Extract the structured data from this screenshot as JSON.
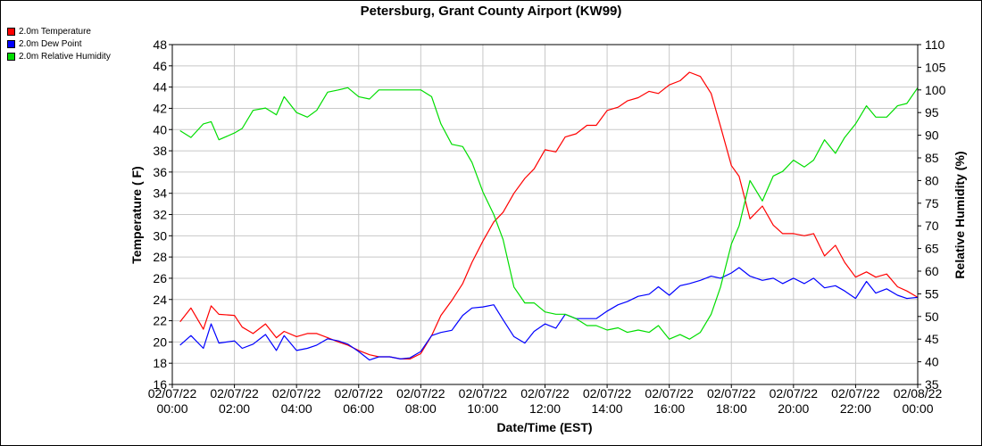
{
  "chart_data": {
    "type": "line",
    "title": "Petersburg, Grant County Airport (KW99)",
    "xlabel": "Date/Time (EST)",
    "ylabel_left": "Temperature ( F)",
    "ylabel_right": "Relative Humidity (%)",
    "ylim_left": [
      16,
      48
    ],
    "ylim_right": [
      35,
      110
    ],
    "yticks_left": [
      16,
      18,
      20,
      22,
      24,
      26,
      28,
      30,
      32,
      34,
      36,
      38,
      40,
      42,
      44,
      46,
      48
    ],
    "yticks_right": [
      35,
      40,
      45,
      50,
      55,
      60,
      65,
      70,
      75,
      80,
      85,
      90,
      95,
      100,
      105,
      110
    ],
    "xlim_hours": [
      0,
      24
    ],
    "xticks": [
      {
        "date": "02/07/22",
        "time": "00:00"
      },
      {
        "date": "02/07/22",
        "time": "02:00"
      },
      {
        "date": "02/07/22",
        "time": "04:00"
      },
      {
        "date": "02/07/22",
        "time": "06:00"
      },
      {
        "date": "02/07/22",
        "time": "08:00"
      },
      {
        "date": "02/07/22",
        "time": "10:00"
      },
      {
        "date": "02/07/22",
        "time": "12:00"
      },
      {
        "date": "02/07/22",
        "time": "14:00"
      },
      {
        "date": "02/07/22",
        "time": "16:00"
      },
      {
        "date": "02/07/22",
        "time": "18:00"
      },
      {
        "date": "02/07/22",
        "time": "20:00"
      },
      {
        "date": "02/07/22",
        "time": "22:00"
      },
      {
        "date": "02/08/22",
        "time": "00:00"
      }
    ],
    "grid": true,
    "legend_position": "top-left",
    "series": [
      {
        "name": "2.0m Temperature",
        "axis": "left",
        "color": "#ff0000",
        "points": [
          [
            0.25,
            21.9
          ],
          [
            0.6,
            23.2
          ],
          [
            1.0,
            21.2
          ],
          [
            1.25,
            23.4
          ],
          [
            1.5,
            22.6
          ],
          [
            2.0,
            22.5
          ],
          [
            2.25,
            21.4
          ],
          [
            2.6,
            20.8
          ],
          [
            3.0,
            21.7
          ],
          [
            3.35,
            20.4
          ],
          [
            3.6,
            21.0
          ],
          [
            4.0,
            20.5
          ],
          [
            4.35,
            20.8
          ],
          [
            4.65,
            20.8
          ],
          [
            5.0,
            20.4
          ],
          [
            5.35,
            20.0
          ],
          [
            5.65,
            19.7
          ],
          [
            6.0,
            19.2
          ],
          [
            6.35,
            18.8
          ],
          [
            6.65,
            18.6
          ],
          [
            7.0,
            18.6
          ],
          [
            7.35,
            18.4
          ],
          [
            7.65,
            18.4
          ],
          [
            8.0,
            18.9
          ],
          [
            8.35,
            20.6
          ],
          [
            8.65,
            22.5
          ],
          [
            9.0,
            23.9
          ],
          [
            9.35,
            25.5
          ],
          [
            9.65,
            27.5
          ],
          [
            10.0,
            29.5
          ],
          [
            10.35,
            31.3
          ],
          [
            10.65,
            32.2
          ],
          [
            11.0,
            34.0
          ],
          [
            11.35,
            35.4
          ],
          [
            11.65,
            36.3
          ],
          [
            12.0,
            38.1
          ],
          [
            12.35,
            37.9
          ],
          [
            12.65,
            39.3
          ],
          [
            13.0,
            39.6
          ],
          [
            13.35,
            40.4
          ],
          [
            13.65,
            40.4
          ],
          [
            14.0,
            41.8
          ],
          [
            14.35,
            42.1
          ],
          [
            14.65,
            42.7
          ],
          [
            15.0,
            43.0
          ],
          [
            15.35,
            43.6
          ],
          [
            15.65,
            43.4
          ],
          [
            16.0,
            44.2
          ],
          [
            16.35,
            44.6
          ],
          [
            16.65,
            45.4
          ],
          [
            17.0,
            45.0
          ],
          [
            17.35,
            43.4
          ],
          [
            17.65,
            40.3
          ],
          [
            18.0,
            36.6
          ],
          [
            18.25,
            35.6
          ],
          [
            18.6,
            31.6
          ],
          [
            19.0,
            32.8
          ],
          [
            19.35,
            31.0
          ],
          [
            19.65,
            30.2
          ],
          [
            20.0,
            30.2
          ],
          [
            20.35,
            30.0
          ],
          [
            20.65,
            30.2
          ],
          [
            21.0,
            28.1
          ],
          [
            21.35,
            29.1
          ],
          [
            21.65,
            27.5
          ],
          [
            22.0,
            26.1
          ],
          [
            22.35,
            26.6
          ],
          [
            22.65,
            26.1
          ],
          [
            23.0,
            26.4
          ],
          [
            23.35,
            25.2
          ],
          [
            23.65,
            24.8
          ],
          [
            24.0,
            24.2
          ]
        ]
      },
      {
        "name": "2.0m Dew Point",
        "axis": "left",
        "color": "#0000ff",
        "points": [
          [
            0.25,
            19.7
          ],
          [
            0.6,
            20.6
          ],
          [
            1.0,
            19.4
          ],
          [
            1.25,
            21.7
          ],
          [
            1.5,
            19.9
          ],
          [
            2.0,
            20.1
          ],
          [
            2.25,
            19.4
          ],
          [
            2.6,
            19.8
          ],
          [
            3.0,
            20.7
          ],
          [
            3.35,
            19.2
          ],
          [
            3.6,
            20.6
          ],
          [
            4.0,
            19.2
          ],
          [
            4.35,
            19.4
          ],
          [
            4.65,
            19.7
          ],
          [
            5.0,
            20.3
          ],
          [
            5.35,
            20.1
          ],
          [
            5.65,
            19.8
          ],
          [
            6.0,
            19.1
          ],
          [
            6.35,
            18.3
          ],
          [
            6.65,
            18.6
          ],
          [
            7.0,
            18.6
          ],
          [
            7.35,
            18.4
          ],
          [
            7.65,
            18.5
          ],
          [
            8.0,
            19.1
          ],
          [
            8.35,
            20.6
          ],
          [
            8.65,
            20.9
          ],
          [
            9.0,
            21.1
          ],
          [
            9.35,
            22.5
          ],
          [
            9.65,
            23.2
          ],
          [
            10.0,
            23.3
          ],
          [
            10.35,
            23.5
          ],
          [
            10.65,
            22.1
          ],
          [
            11.0,
            20.5
          ],
          [
            11.35,
            19.9
          ],
          [
            11.65,
            21.0
          ],
          [
            12.0,
            21.7
          ],
          [
            12.35,
            21.3
          ],
          [
            12.65,
            22.6
          ],
          [
            13.0,
            22.2
          ],
          [
            13.35,
            22.2
          ],
          [
            13.65,
            22.2
          ],
          [
            14.0,
            22.9
          ],
          [
            14.35,
            23.5
          ],
          [
            14.65,
            23.8
          ],
          [
            15.0,
            24.3
          ],
          [
            15.35,
            24.5
          ],
          [
            15.65,
            25.2
          ],
          [
            16.0,
            24.4
          ],
          [
            16.35,
            25.3
          ],
          [
            16.65,
            25.5
          ],
          [
            17.0,
            25.8
          ],
          [
            17.35,
            26.2
          ],
          [
            17.65,
            26.0
          ],
          [
            18.0,
            26.5
          ],
          [
            18.25,
            27.0
          ],
          [
            18.6,
            26.2
          ],
          [
            19.0,
            25.8
          ],
          [
            19.35,
            26.0
          ],
          [
            19.65,
            25.5
          ],
          [
            20.0,
            26.0
          ],
          [
            20.35,
            25.5
          ],
          [
            20.65,
            26.0
          ],
          [
            21.0,
            25.1
          ],
          [
            21.35,
            25.3
          ],
          [
            21.65,
            24.8
          ],
          [
            22.0,
            24.1
          ],
          [
            22.35,
            25.7
          ],
          [
            22.65,
            24.6
          ],
          [
            23.0,
            25.0
          ],
          [
            23.35,
            24.4
          ],
          [
            23.65,
            24.1
          ],
          [
            24.0,
            24.2
          ]
        ]
      },
      {
        "name": "2.0m Relative Humidity",
        "axis": "right",
        "color": "#00dd00",
        "points": [
          [
            0.25,
            91
          ],
          [
            0.6,
            89.5
          ],
          [
            1.0,
            92.5
          ],
          [
            1.25,
            93
          ],
          [
            1.5,
            89
          ],
          [
            2.0,
            90.5
          ],
          [
            2.25,
            91.5
          ],
          [
            2.6,
            95.5
          ],
          [
            3.0,
            96
          ],
          [
            3.35,
            94.5
          ],
          [
            3.6,
            98.5
          ],
          [
            4.0,
            95
          ],
          [
            4.35,
            94
          ],
          [
            4.65,
            95.5
          ],
          [
            5.0,
            99.5
          ],
          [
            5.35,
            100
          ],
          [
            5.65,
            100.5
          ],
          [
            6.0,
            98.5
          ],
          [
            6.35,
            98
          ],
          [
            6.65,
            100
          ],
          [
            7.0,
            100
          ],
          [
            7.35,
            100
          ],
          [
            7.65,
            100
          ],
          [
            8.0,
            100
          ],
          [
            8.35,
            98.5
          ],
          [
            8.65,
            92.5
          ],
          [
            9.0,
            88
          ],
          [
            9.35,
            87.5
          ],
          [
            9.65,
            84
          ],
          [
            10.0,
            77.5
          ],
          [
            10.35,
            72.5
          ],
          [
            10.65,
            67
          ],
          [
            11.0,
            56.5
          ],
          [
            11.35,
            53
          ],
          [
            11.65,
            53
          ],
          [
            12.0,
            51
          ],
          [
            12.35,
            50.5
          ],
          [
            12.65,
            50.5
          ],
          [
            13.0,
            49.5
          ],
          [
            13.35,
            48
          ],
          [
            13.65,
            48
          ],
          [
            14.0,
            47
          ],
          [
            14.35,
            47.5
          ],
          [
            14.65,
            46.5
          ],
          [
            15.0,
            47
          ],
          [
            15.35,
            46.5
          ],
          [
            15.65,
            48
          ],
          [
            16.0,
            45
          ],
          [
            16.35,
            46
          ],
          [
            16.65,
            45
          ],
          [
            17.0,
            46.5
          ],
          [
            17.35,
            50.5
          ],
          [
            17.65,
            56.5
          ],
          [
            18.0,
            66
          ],
          [
            18.25,
            70
          ],
          [
            18.6,
            80
          ],
          [
            19.0,
            75.5
          ],
          [
            19.35,
            81
          ],
          [
            19.65,
            82
          ],
          [
            20.0,
            84.5
          ],
          [
            20.35,
            83
          ],
          [
            20.65,
            84.5
          ],
          [
            21.0,
            89
          ],
          [
            21.35,
            86
          ],
          [
            21.65,
            89.5
          ],
          [
            22.0,
            92.5
          ],
          [
            22.35,
            96.5
          ],
          [
            22.65,
            94
          ],
          [
            23.0,
            94
          ],
          [
            23.35,
            96.5
          ],
          [
            23.65,
            97
          ],
          [
            24.0,
            100.5
          ]
        ]
      }
    ]
  }
}
